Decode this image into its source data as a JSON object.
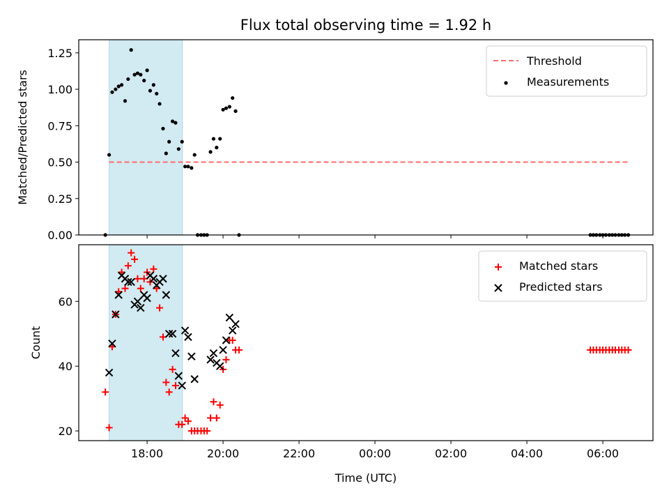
{
  "title": "Flux total observing time = 1.92 h",
  "xlabel": "Time (UTC)",
  "x_ticks": [
    {
      "t": 18,
      "label": "18:00"
    },
    {
      "t": 20,
      "label": "20:00"
    },
    {
      "t": 22,
      "label": "22:00"
    },
    {
      "t": 24,
      "label": "00:00"
    },
    {
      "t": 26,
      "label": "02:00"
    },
    {
      "t": 28,
      "label": "04:00"
    },
    {
      "t": 30,
      "label": "06:00"
    }
  ],
  "chart_data": [
    {
      "type": "scatter",
      "ylabel": "Matched/Predicted stars",
      "xlim": [
        16.2,
        31.32
      ],
      "ylim": [
        0,
        1.34
      ],
      "y_ticks": [
        "0.00",
        "0.25",
        "0.50",
        "0.75",
        "1.00",
        "1.25"
      ],
      "y_tick_values": [
        0,
        0.25,
        0.5,
        0.75,
        1.0,
        1.25
      ],
      "shaded_region": {
        "x_start": 17.0,
        "x_end": 18.93,
        "color": "#add8e6"
      },
      "threshold": {
        "name": "Threshold",
        "y": 0.5,
        "x_start": 17.0,
        "x_end": 30.67,
        "color": "#ff6b6b"
      },
      "legend": {
        "position": "top-right"
      },
      "series": [
        {
          "name": "Measurements",
          "color": "#000000",
          "marker": "dot",
          "x": [
            16.9,
            17.0,
            17.08,
            17.17,
            17.25,
            17.33,
            17.42,
            17.5,
            17.58,
            17.67,
            17.75,
            17.83,
            17.92,
            18.0,
            18.08,
            18.17,
            18.25,
            18.33,
            18.42,
            18.5,
            18.58,
            18.67,
            18.75,
            18.83,
            18.92,
            19.0,
            19.08,
            19.17,
            19.25,
            19.33,
            19.42,
            19.5,
            19.58,
            19.67,
            19.75,
            19.83,
            19.92,
            20.0,
            20.08,
            20.17,
            20.25,
            20.33,
            20.42,
            29.67,
            29.75,
            29.83,
            29.92,
            30.0,
            30.08,
            30.17,
            30.25,
            30.33,
            30.42,
            30.5,
            30.58,
            30.67
          ],
          "y": [
            0.0,
            0.55,
            0.98,
            1.0,
            1.02,
            1.03,
            0.92,
            1.07,
            1.27,
            1.1,
            1.11,
            1.1,
            1.06,
            1.13,
            0.99,
            1.03,
            0.97,
            0.9,
            0.73,
            0.56,
            0.64,
            0.78,
            0.77,
            0.59,
            0.64,
            0.47,
            0.47,
            0.46,
            0.55,
            0.0,
            0.0,
            0.0,
            0.0,
            0.57,
            0.66,
            0.6,
            0.66,
            0.86,
            0.87,
            0.88,
            0.94,
            0.85,
            0.0,
            0.0,
            0.0,
            0.0,
            0.0,
            0.0,
            0.0,
            0.0,
            0.0,
            0.0,
            0.0,
            0.0,
            0.0,
            0.0
          ]
        }
      ]
    },
    {
      "type": "scatter",
      "ylabel": "Count",
      "xlim": [
        16.2,
        31.32
      ],
      "ylim": [
        17,
        77.5
      ],
      "y_ticks": [
        "20",
        "40",
        "60"
      ],
      "y_tick_values": [
        20,
        40,
        60
      ],
      "shaded_region": {
        "x_start": 17.0,
        "x_end": 18.93,
        "color": "#add8e6"
      },
      "legend": {
        "position": "top-right"
      },
      "series": [
        {
          "name": "Matched stars",
          "color": "#ff0000",
          "marker": "plus",
          "x": [
            16.9,
            17.0,
            17.08,
            17.17,
            17.25,
            17.33,
            17.42,
            17.5,
            17.58,
            17.67,
            17.75,
            17.83,
            17.92,
            18.0,
            18.08,
            18.17,
            18.25,
            18.33,
            18.42,
            18.5,
            18.58,
            18.67,
            18.75,
            18.83,
            18.92,
            19.0,
            19.08,
            19.17,
            19.25,
            19.33,
            19.42,
            19.5,
            19.58,
            19.67,
            19.75,
            19.83,
            19.92,
            20.0,
            20.08,
            20.17,
            20.25,
            20.33,
            20.42,
            29.67,
            29.75,
            29.83,
            29.92,
            30.0,
            30.08,
            30.17,
            30.25,
            30.33,
            30.42,
            30.5,
            30.58,
            30.67
          ],
          "y": [
            32,
            21,
            46,
            56,
            63,
            69,
            64,
            71,
            75,
            73,
            67,
            64,
            67,
            69,
            66,
            70,
            64,
            58,
            49,
            35,
            32,
            39,
            34,
            22,
            22,
            24,
            23,
            20,
            20,
            20,
            20,
            20,
            20,
            24,
            29,
            24,
            28,
            39,
            42,
            48,
            48,
            45,
            45,
            45,
            45,
            45,
            45,
            45,
            45,
            45,
            45,
            45,
            45,
            45,
            45,
            45
          ]
        },
        {
          "name": "Predicted stars",
          "color": "#000000",
          "marker": "x",
          "x": [
            17.0,
            17.08,
            17.17,
            17.25,
            17.33,
            17.42,
            17.5,
            17.58,
            17.67,
            17.75,
            17.83,
            17.92,
            18.0,
            18.08,
            18.17,
            18.25,
            18.33,
            18.42,
            18.5,
            18.58,
            18.67,
            18.75,
            18.83,
            18.92,
            19.0,
            19.08,
            19.17,
            19.25,
            19.67,
            19.75,
            19.83,
            19.92,
            20.0,
            20.08,
            20.17,
            20.25,
            20.33
          ],
          "y": [
            38,
            47,
            56,
            62,
            68,
            67,
            66,
            66,
            59,
            60,
            58,
            62,
            61,
            68,
            67,
            65,
            66,
            67,
            62,
            50,
            50,
            44,
            37,
            34,
            51,
            49,
            43,
            36,
            42,
            44,
            41,
            40,
            45,
            48,
            55,
            51,
            53
          ]
        }
      ]
    }
  ]
}
